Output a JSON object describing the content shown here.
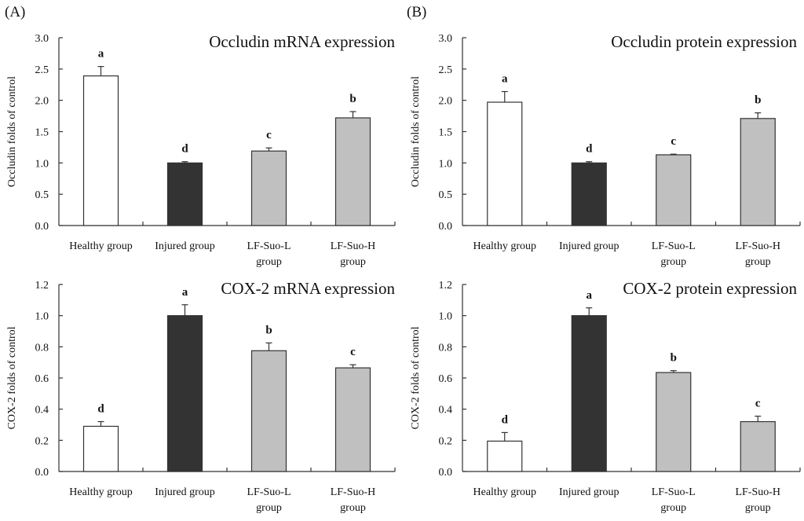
{
  "panels": [
    {
      "label": "(A)"
    },
    {
      "label": "(B)"
    }
  ],
  "chart_data": [
    {
      "type": "bar",
      "panel": "(A)",
      "title": "Occludin mRNA expression",
      "xlabel": "",
      "ylabel": "Occludin folds of control",
      "categories": [
        [
          "Healthy group"
        ],
        [
          "Injured group"
        ],
        [
          "LF-Suo-L",
          "group"
        ],
        [
          "LF-Suo-H",
          "group"
        ]
      ],
      "values": [
        2.39,
        1.0,
        1.19,
        1.72
      ],
      "errors": [
        0.15,
        0.02,
        0.05,
        0.1
      ],
      "significance": [
        "a",
        "d",
        "c",
        "b"
      ],
      "bar_colors": [
        "#ffffff",
        "#333333",
        "#c0c0c0",
        "#c0c0c0"
      ],
      "ylim": [
        0,
        3.0
      ],
      "yticks": [
        "0.0",
        "0.5",
        "1.0",
        "1.5",
        "2.0",
        "2.5",
        "3.0"
      ],
      "grid": false
    },
    {
      "type": "bar",
      "panel": "(B)",
      "title": "Occludin protein expression",
      "xlabel": "",
      "ylabel": "Occludin folds of control",
      "categories": [
        [
          "Healthy group"
        ],
        [
          "Injured group"
        ],
        [
          "LF-Suo-L",
          "group"
        ],
        [
          "LF-Suo-H",
          "group"
        ]
      ],
      "values": [
        1.97,
        1.0,
        1.13,
        1.71
      ],
      "errors": [
        0.17,
        0.02,
        0.01,
        0.09
      ],
      "significance": [
        "a",
        "d",
        "c",
        "b"
      ],
      "bar_colors": [
        "#ffffff",
        "#333333",
        "#c0c0c0",
        "#c0c0c0"
      ],
      "ylim": [
        0,
        3.0
      ],
      "yticks": [
        "0.0",
        "0.5",
        "1.0",
        "1.5",
        "2.0",
        "2.5",
        "3.0"
      ],
      "grid": false
    },
    {
      "type": "bar",
      "panel": "(A)",
      "title": "COX-2 mRNA expression",
      "xlabel": "",
      "ylabel": "COX-2 folds of control",
      "categories": [
        [
          "Healthy group"
        ],
        [
          "Injured group"
        ],
        [
          "LF-Suo-L",
          "group"
        ],
        [
          "LF-Suo-H",
          "group"
        ]
      ],
      "values": [
        0.29,
        1.0,
        0.775,
        0.665
      ],
      "errors": [
        0.03,
        0.07,
        0.05,
        0.02
      ],
      "significance": [
        "d",
        "a",
        "b",
        "c"
      ],
      "bar_colors": [
        "#ffffff",
        "#333333",
        "#c0c0c0",
        "#c0c0c0"
      ],
      "ylim": [
        0,
        1.2
      ],
      "yticks": [
        "0.0",
        "0.2",
        "0.4",
        "0.6",
        "0.8",
        "1.0",
        "1.2"
      ],
      "grid": false
    },
    {
      "type": "bar",
      "panel": "(B)",
      "title": "COX-2 protein expression",
      "xlabel": "",
      "ylabel": "COX-2 folds of control",
      "categories": [
        [
          "Healthy group"
        ],
        [
          "Injured group"
        ],
        [
          "LF-Suo-L",
          "group"
        ],
        [
          "LF-Suo-H",
          "group"
        ]
      ],
      "values": [
        0.195,
        1.0,
        0.635,
        0.32
      ],
      "errors": [
        0.055,
        0.05,
        0.012,
        0.035
      ],
      "significance": [
        "d",
        "a",
        "b",
        "c"
      ],
      "bar_colors": [
        "#ffffff",
        "#333333",
        "#c0c0c0",
        "#c0c0c0"
      ],
      "ylim": [
        0,
        1.2
      ],
      "yticks": [
        "0.0",
        "0.2",
        "0.4",
        "0.6",
        "0.8",
        "1.0",
        "1.2"
      ],
      "grid": false
    }
  ]
}
